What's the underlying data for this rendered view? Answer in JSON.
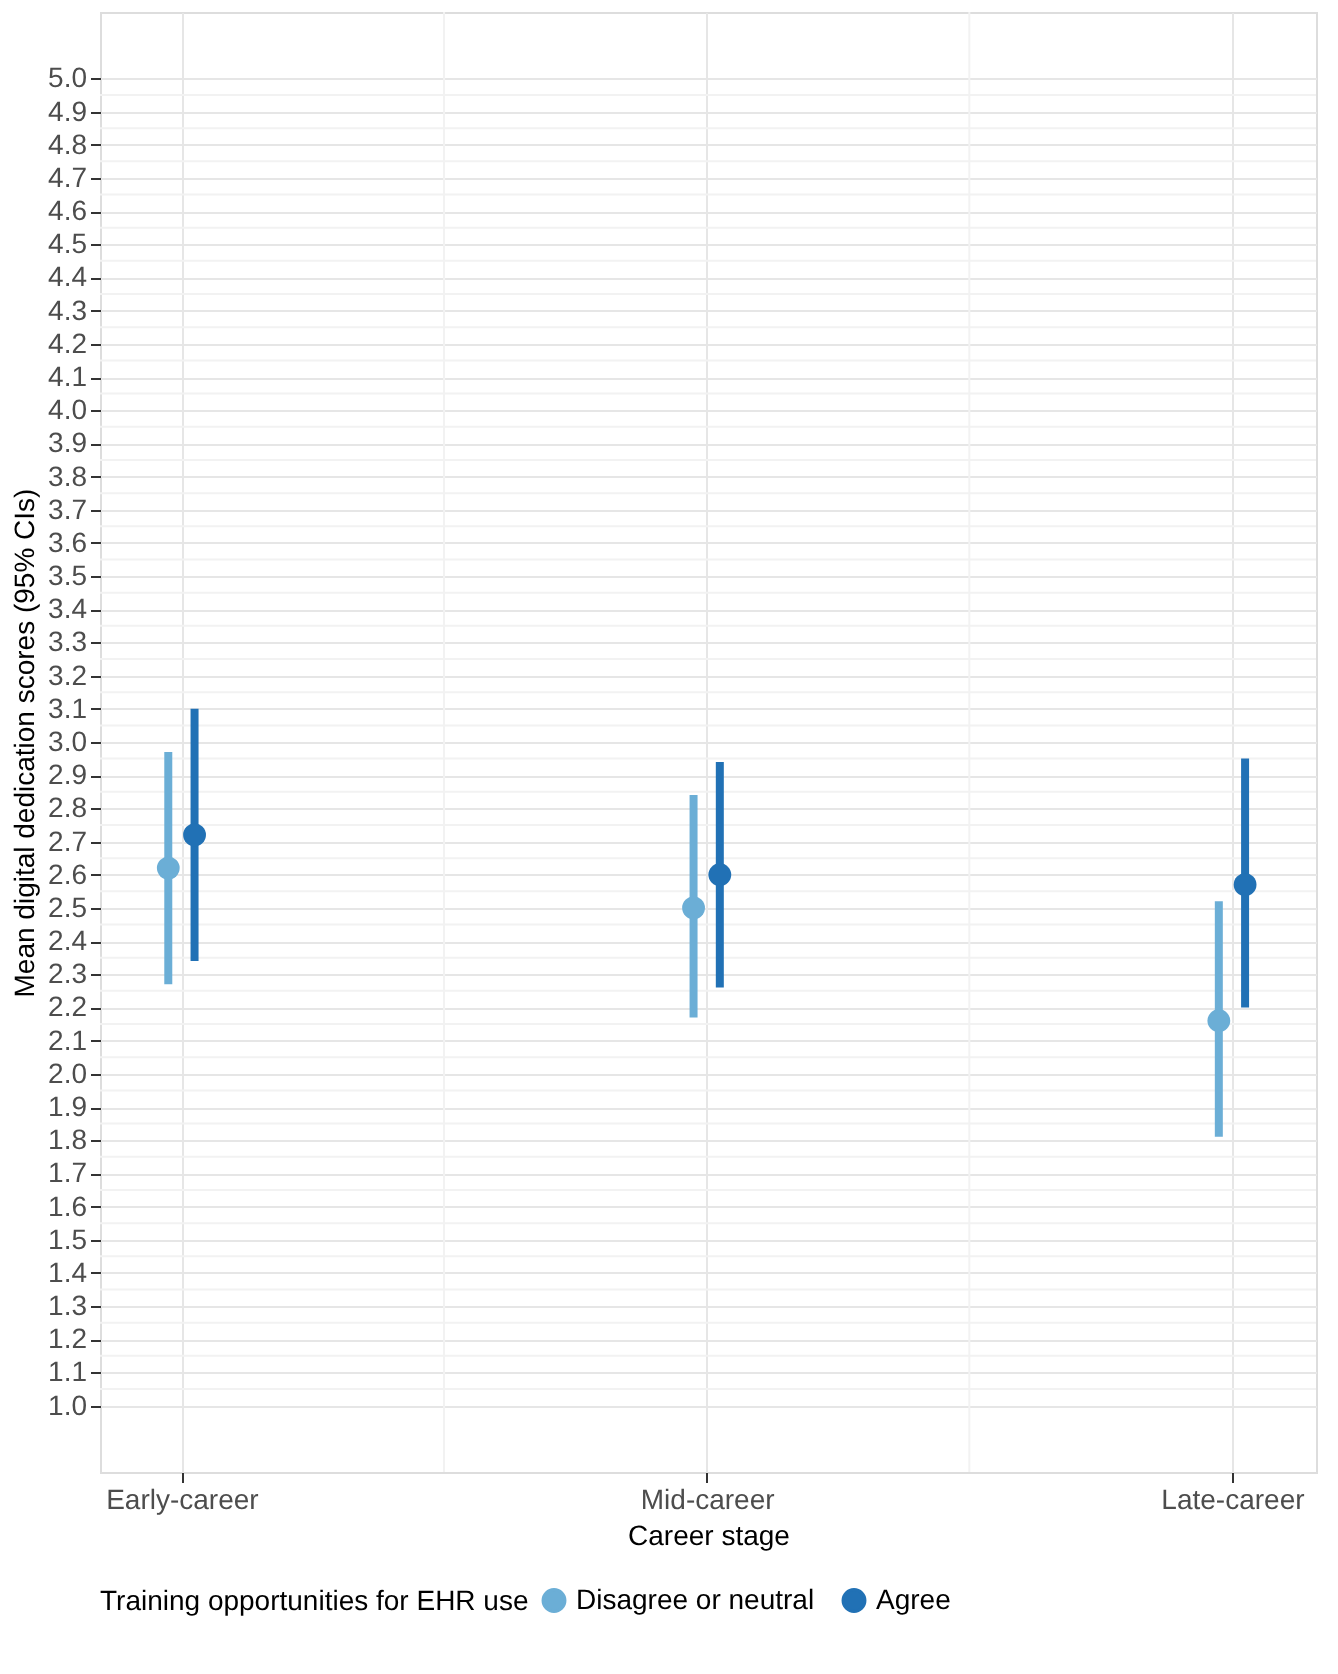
{
  "chart_data": {
    "type": "scatter",
    "xlabel": "Career stage",
    "ylabel": "Mean digital dedication scores (95% CIs)",
    "legend_title": "Training opportunities for EHR use",
    "categories": [
      "Early-career",
      "Mid-career",
      "Late-career"
    ],
    "series": [
      {
        "name": "Disagree or neutral",
        "color": "#6baed6",
        "values": [
          2.62,
          2.5,
          2.16
        ],
        "errors": [
          [
            2.27,
            2.97
          ],
          [
            2.17,
            2.84
          ],
          [
            1.81,
            2.52
          ]
        ]
      },
      {
        "name": "Agree",
        "color": "#2171b5",
        "values": [
          2.72,
          2.6,
          2.57
        ],
        "errors": [
          [
            2.34,
            3.1
          ],
          [
            2.26,
            2.94
          ],
          [
            2.2,
            2.95
          ]
        ]
      }
    ],
    "ylim": [
      0.8,
      5.2
    ],
    "yticks": [
      {
        "value": 1,
        "label": "1.0"
      },
      1.1,
      1.2,
      1.3,
      1.4,
      1.5,
      1.6,
      1.7,
      1.8,
      1.9,
      {
        "value": 2,
        "label": "2.0"
      },
      2.1,
      2.2,
      2.3,
      2.4,
      2.5,
      2.6,
      2.7,
      2.8,
      2.9,
      {
        "value": 3,
        "label": "3.0"
      },
      3.1,
      3.2,
      3.3,
      3.4,
      3.5,
      3.6,
      3.7,
      3.8,
      3.9,
      {
        "value": 4,
        "label": "4.0"
      },
      4.1,
      4.2,
      4.3,
      4.4,
      4.5,
      4.6,
      4.7,
      4.8,
      4.9,
      {
        "value": 5,
        "label": "5.0"
      }
    ],
    "grid": true,
    "legend": "bottom",
    "marker": "circle"
  }
}
